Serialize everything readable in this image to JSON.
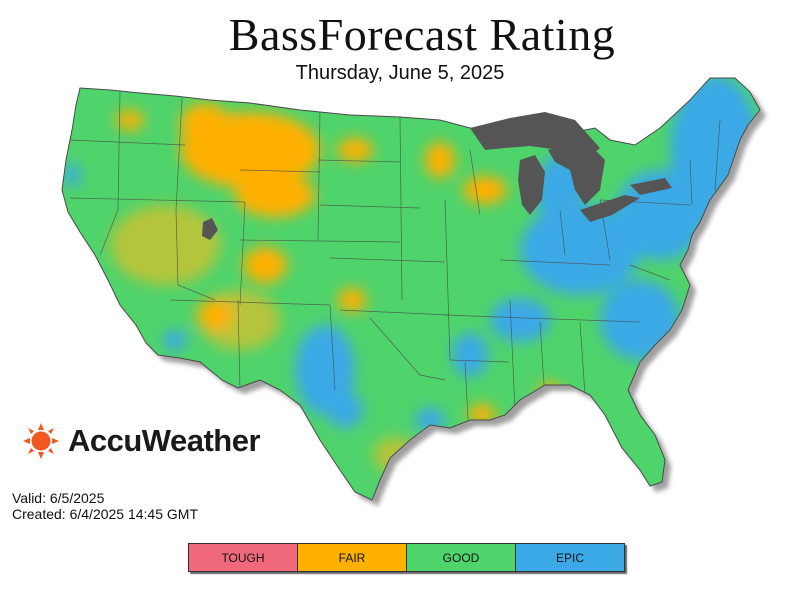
{
  "header": {
    "title": "BassForecast Rating",
    "date": "Thursday, June 5, 2025"
  },
  "brand": {
    "name": "AccuWeather",
    "color": "#f05a22"
  },
  "meta": {
    "valid": "Valid: 6/5/2025",
    "created": "Created: 6/4/2025 14:45 GMT"
  },
  "legend": [
    {
      "label": "TOUGH",
      "color": "#f0697a"
    },
    {
      "label": "FAIR",
      "color": "#ffb000"
    },
    {
      "label": "GOOD",
      "color": "#4fd36b"
    },
    {
      "label": "EPIC",
      "color": "#3aa9e6"
    }
  ],
  "map": {
    "base_color": "#4fd36b",
    "fair_color": "#ffb000",
    "fair_light_color": "#b5c53a",
    "epic_color": "#3aa9e6",
    "water_color": "#555555",
    "border_color": "#4a4a4a"
  }
}
